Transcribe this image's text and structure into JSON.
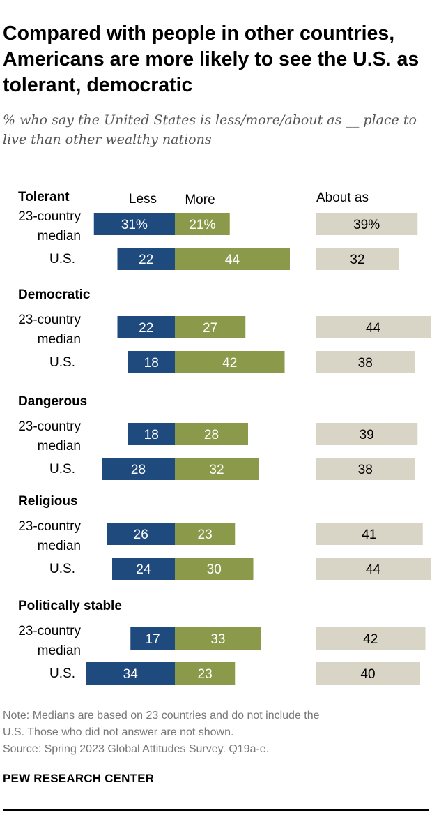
{
  "header": {
    "title": "Compared with people in other countries, Americans are more likely to see the U.S. as tolerant, democratic",
    "subtitle": "% who say the United States is less/more/about as __ place to live than other wealthy nations"
  },
  "colors": {
    "less": "#1f4a7d",
    "more": "#8a9a4a",
    "about": "#d9d5c6"
  },
  "chart_data": {
    "type": "bar",
    "legend": {
      "less": "Less",
      "more": "More",
      "about": "About as"
    },
    "xlim": [
      0,
      100
    ],
    "groups": [
      {
        "name": "Tolerant",
        "rows": [
          {
            "label": [
              "23-country",
              "median"
            ],
            "less": 31,
            "more": 21,
            "about": 39,
            "less_label": "31%",
            "more_label": "21%",
            "about_label": "39%"
          },
          {
            "label": [
              "U.S."
            ],
            "less": 22,
            "more": 44,
            "about": 32,
            "less_label": "22",
            "more_label": "44",
            "about_label": "32"
          }
        ]
      },
      {
        "name": "Democratic",
        "rows": [
          {
            "label": [
              "23-country",
              "median"
            ],
            "less": 22,
            "more": 27,
            "about": 44,
            "less_label": "22",
            "more_label": "27",
            "about_label": "44"
          },
          {
            "label": [
              "U.S."
            ],
            "less": 18,
            "more": 42,
            "about": 38,
            "less_label": "18",
            "more_label": "42",
            "about_label": "38"
          }
        ]
      },
      {
        "name": "Dangerous",
        "rows": [
          {
            "label": [
              "23-country",
              "median"
            ],
            "less": 18,
            "more": 28,
            "about": 39,
            "less_label": "18",
            "more_label": "28",
            "about_label": "39"
          },
          {
            "label": [
              "U.S."
            ],
            "less": 28,
            "more": 32,
            "about": 38,
            "less_label": "28",
            "more_label": "32",
            "about_label": "38"
          }
        ]
      },
      {
        "name": "Religious",
        "rows": [
          {
            "label": [
              "23-country",
              "median"
            ],
            "less": 26,
            "more": 23,
            "about": 41,
            "less_label": "26",
            "more_label": "23",
            "about_label": "41"
          },
          {
            "label": [
              "U.S."
            ],
            "less": 24,
            "more": 30,
            "about": 44,
            "less_label": "24",
            "more_label": "30",
            "about_label": "44"
          }
        ]
      },
      {
        "name": "Politically stable",
        "rows": [
          {
            "label": [
              "23-country",
              "median"
            ],
            "less": 17,
            "more": 33,
            "about": 42,
            "less_label": "17",
            "more_label": "33",
            "about_label": "42"
          },
          {
            "label": [
              "U.S."
            ],
            "less": 34,
            "more": 23,
            "about": 40,
            "less_label": "34",
            "more_label": "23",
            "about_label": "40"
          }
        ]
      }
    ]
  },
  "footer": {
    "note_line1": "Note: Medians are based on 23 countries and do not include the",
    "note_line2": "U.S. Those who did not answer are not shown.",
    "source": "Source: Spring 2023 Global Attitudes Survey. Q19a-e.",
    "brand": "PEW RESEARCH CENTER"
  }
}
